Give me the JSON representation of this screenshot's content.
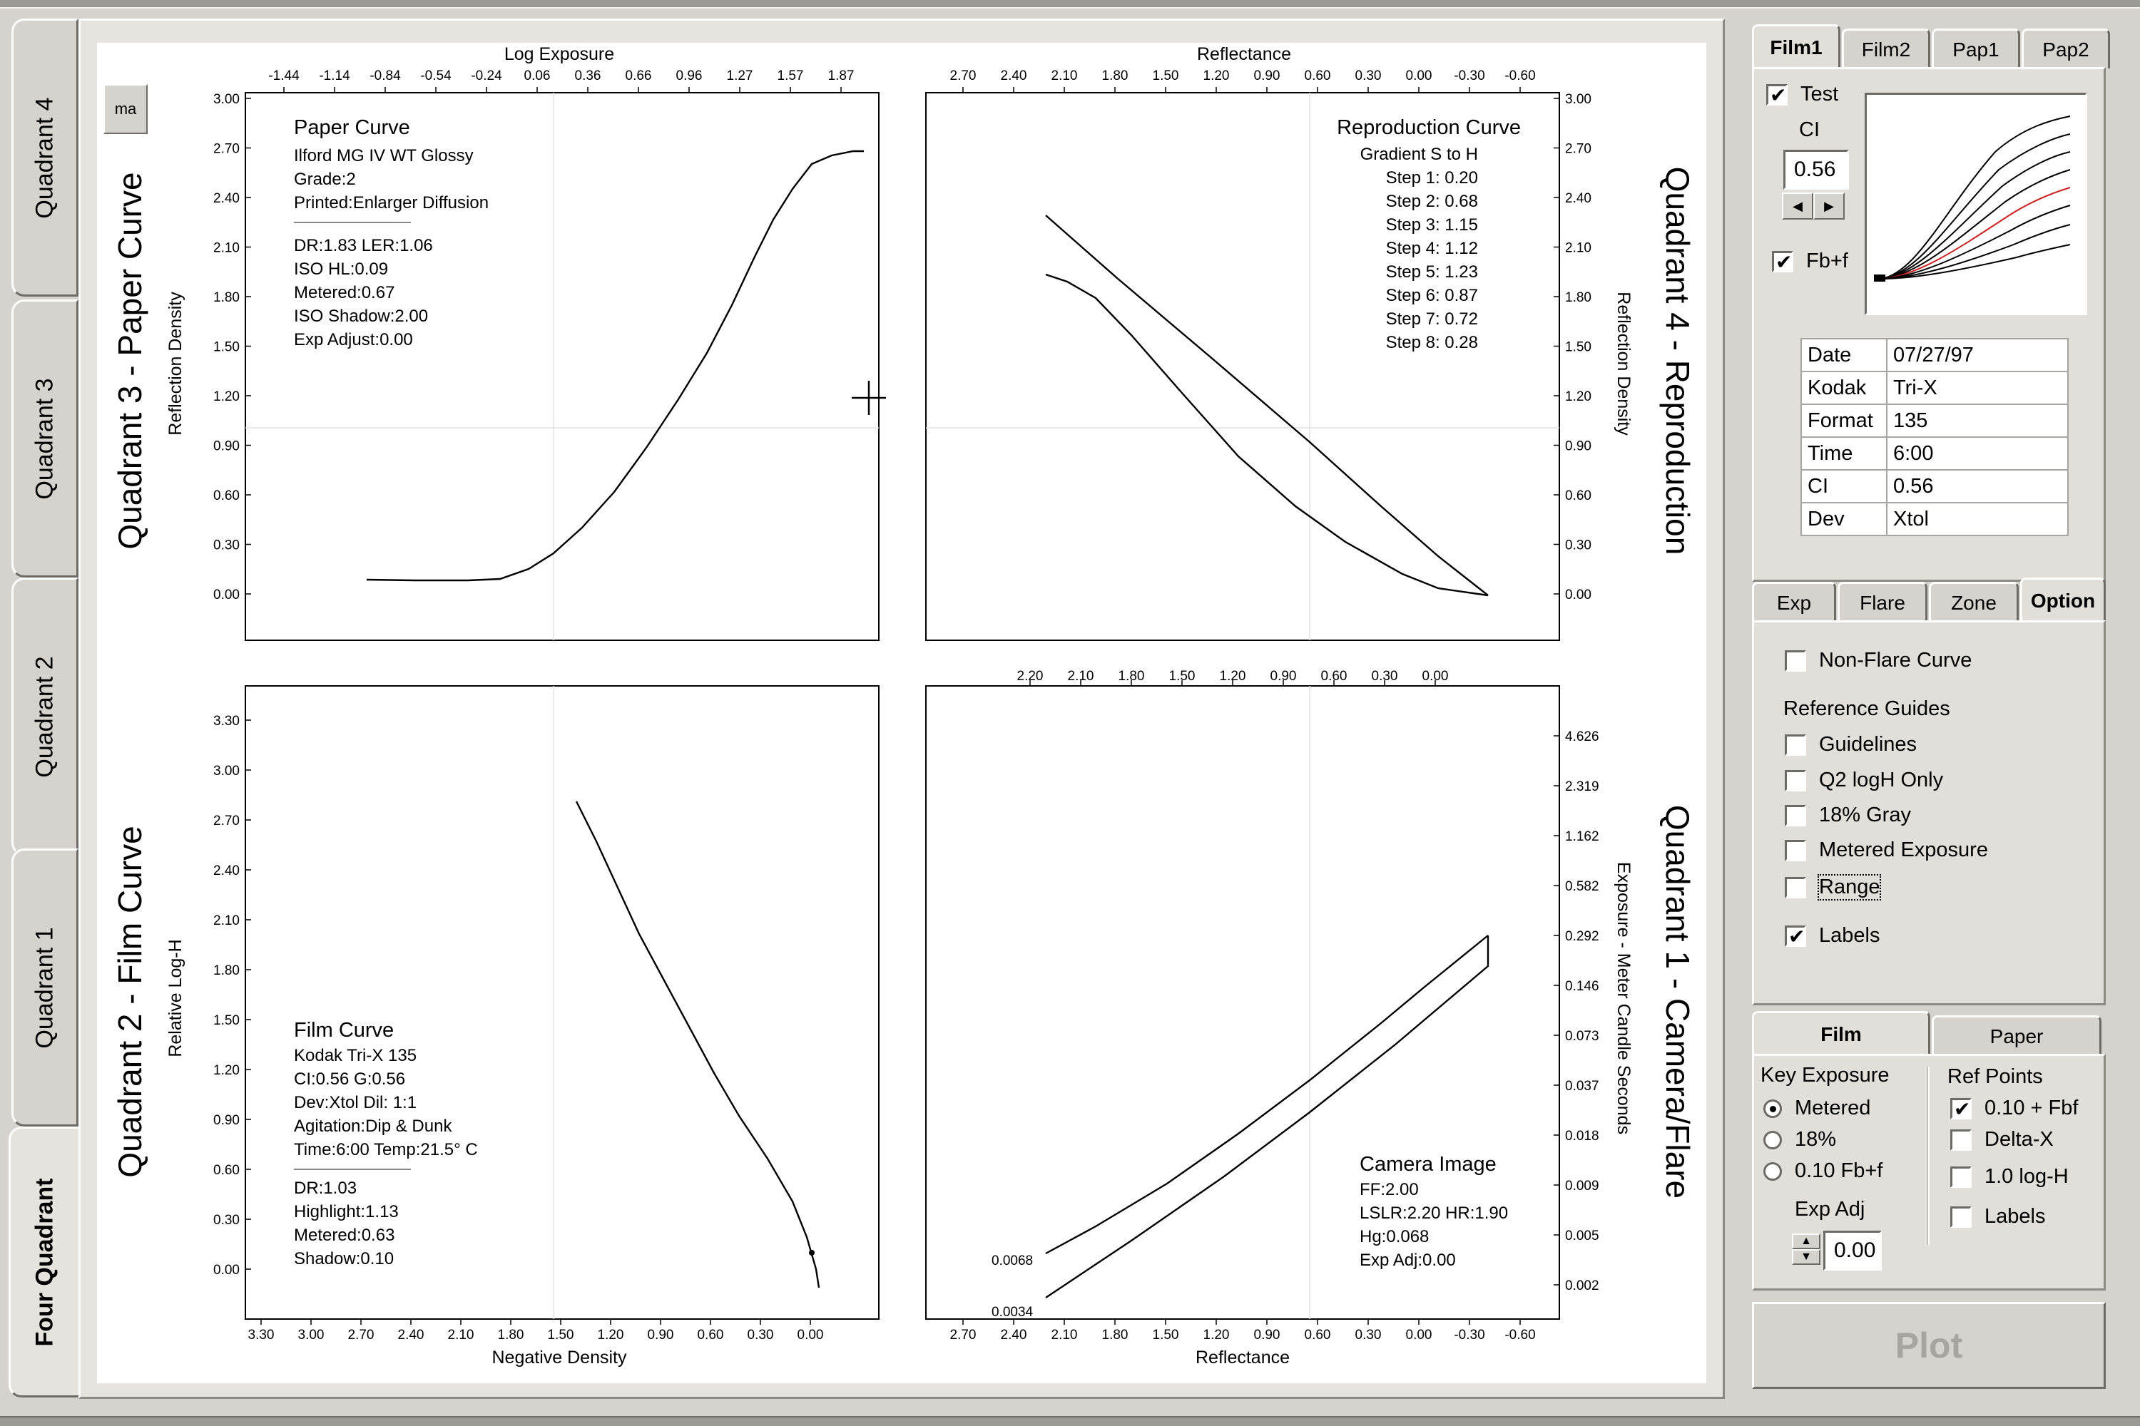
{
  "left_tabs": [
    "Quadrant 4",
    "Quadrant 3",
    "Quadrant 2",
    "Quadrant 1",
    "Four Quadrant"
  ],
  "ma_button": "ma",
  "quadrants": {
    "q3": {
      "title": "Quadrant 3 - Paper Curve",
      "top_axis_label": "Log Exposure",
      "top_ticks": [
        "-1.44",
        "-1.14",
        "-0.84",
        "-0.54",
        "-0.24",
        "0.06",
        "0.36",
        "0.66",
        "0.96",
        "1.27",
        "1.57",
        "1.87"
      ],
      "y_axis_label": "Reflection Density",
      "y_ticks": [
        "3.00",
        "2.70",
        "2.40",
        "2.10",
        "1.80",
        "1.50",
        "1.20",
        "0.90",
        "0.60",
        "0.30",
        "0.00"
      ],
      "info_head": "Paper Curve",
      "info_lines": [
        "Ilford MG IV WT  Glossy",
        "Grade:2",
        "Printed:Enlarger Diffusion"
      ],
      "info_lines2": [
        "DR:1.83  LER:1.06",
        "ISO HL:0.09",
        "Metered:0.67",
        "ISO Shadow:2.00",
        "Exp Adjust:0.00"
      ]
    },
    "q4": {
      "title": "Quadrant 4 - Reproduction",
      "top_axis_label": "Reflectance",
      "top_ticks": [
        "2.70",
        "2.40",
        "2.10",
        "1.80",
        "1.50",
        "1.20",
        "0.90",
        "0.60",
        "0.30",
        "0.00",
        "-0.30",
        "-0.60"
      ],
      "y_axis_label": "Reflection Density",
      "y_ticks": [
        "3.00",
        "2.70",
        "2.40",
        "2.10",
        "1.80",
        "1.50",
        "1.20",
        "0.90",
        "0.60",
        "0.30",
        "0.00"
      ],
      "info_head": "Reproduction Curve",
      "info_lines": [
        "Gradient S to H",
        "Step 1: 0.20",
        "Step 2: 0.68",
        "Step 3: 1.15",
        "Step 4: 1.12",
        "Step 5: 1.23",
        "Step 6: 0.87",
        "Step 7: 0.72",
        "Step 8: 0.28"
      ]
    },
    "q2": {
      "title": "Quadrant 2 - Film Curve",
      "bottom_axis_label": "Negative Density",
      "bottom_ticks": [
        "3.30",
        "3.00",
        "2.70",
        "2.40",
        "2.10",
        "1.80",
        "1.50",
        "1.20",
        "0.90",
        "0.60",
        "0.30",
        "0.00"
      ],
      "y_axis_label": "Relative Log-H",
      "y_ticks": [
        "3.30",
        "3.00",
        "2.70",
        "2.40",
        "2.10",
        "1.80",
        "1.50",
        "1.20",
        "0.90",
        "0.60",
        "0.30",
        "0.00"
      ],
      "info_head": "Film Curve",
      "info_lines": [
        "Kodak Tri-X 135",
        "CI:0.56  G:0.56",
        "Dev:Xtol  Dil: 1:1",
        "Agitation:Dip & Dunk",
        "Time:6:00  Temp:21.5° C"
      ],
      "info_lines2": [
        "DR:1.03",
        "Highlight:1.13",
        "Metered:0.63",
        "Shadow:0.10"
      ]
    },
    "q1": {
      "title": "Quadrant 1 - Camera/Flare",
      "top_ticks": [
        "2.20",
        "2.10",
        "1.80",
        "1.50",
        "1.20",
        "0.90",
        "0.60",
        "0.30",
        "0.00"
      ],
      "bottom_axis_label": "Reflectance",
      "bottom_ticks": [
        "2.70",
        "2.40",
        "2.10",
        "1.80",
        "1.50",
        "1.20",
        "0.90",
        "0.60",
        "0.30",
        "0.00",
        "-0.30",
        "-0.60"
      ],
      "y_axis_label": "Exposure - Meter Candle Seconds",
      "y_ticks": [
        "4.626",
        "2.319",
        "1.162",
        "0.582",
        "0.292",
        "0.146",
        "0.073",
        "0.037",
        "0.018",
        "0.009",
        "0.005",
        "0.002"
      ],
      "point_labels": [
        "0.0068",
        "0.0034"
      ],
      "info_head": "Camera Image",
      "info_lines": [
        "FF:2.00",
        "LSLR:2.20  HR:1.90",
        "Hg:0.068",
        "Exp Adj:0.00"
      ]
    }
  },
  "film_panel": {
    "tabs": [
      "Film1",
      "Film2",
      "Pap1",
      "Pap2"
    ],
    "active_tab": "Film1",
    "test_label": "Test",
    "test_checked": true,
    "ci_label": "CI",
    "ci_value": "0.56",
    "fbf_label": "Fb+f",
    "fbf_checked": true,
    "info": [
      {
        "key": "Date",
        "value": "07/27/97"
      },
      {
        "key": "Kodak",
        "value": "Tri-X"
      },
      {
        "key": "Format",
        "value": "135"
      },
      {
        "key": "Time",
        "value": "6:00"
      },
      {
        "key": "CI",
        "value": "0.56"
      },
      {
        "key": "Dev",
        "value": "Xtol"
      }
    ]
  },
  "options_panel": {
    "tabs": [
      "Exp",
      "Flare",
      "Zone",
      "Option"
    ],
    "active_tab": "Option",
    "non_flare": "Non-Flare Curve",
    "reference_guides": "Reference Guides",
    "guides": [
      "Guidelines",
      "Q2 logH Only",
      "18% Gray",
      "Metered Exposure",
      "Range"
    ],
    "labels": "Labels",
    "labels_checked": true
  },
  "film_paper_panel": {
    "tabs": [
      "Film",
      "Paper"
    ],
    "active_tab": "Film",
    "key_exposure": "Key Exposure",
    "key_options": [
      "Metered",
      "18%",
      "0.10 Fb+f"
    ],
    "selected_key": "Metered",
    "exp_adj_label": "Exp Adj",
    "exp_adj_value": "0.00",
    "ref_points": "Ref Points",
    "ref_options": [
      {
        "label": "0.10 + Fbf",
        "checked": true
      },
      {
        "label": "Delta-X",
        "checked": false
      },
      {
        "label": "1.0 log-H",
        "checked": false
      },
      {
        "label": "Labels",
        "checked": false
      }
    ]
  },
  "plot_button": "Plot",
  "colors": {
    "background": "#d6d3ce",
    "plot_bg": "#ffffff",
    "highlight_curve": "#cc2222",
    "disabled_text": "#a8a5a0"
  }
}
